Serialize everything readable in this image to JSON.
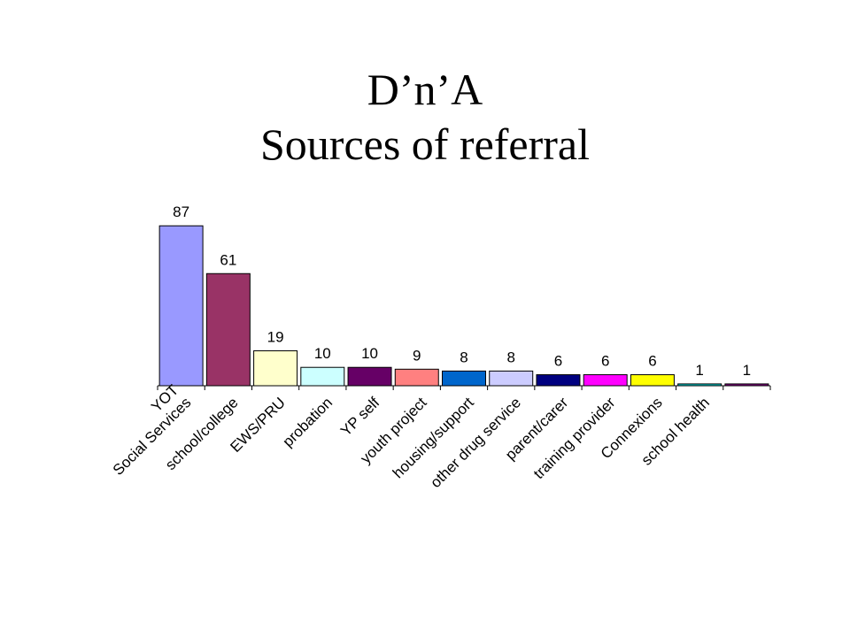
{
  "chart_data": {
    "type": "bar",
    "title": [
      "D’n’A",
      "Sources of referral"
    ],
    "categories": [
      "YOT\nSocial Services",
      "school/college",
      "EWS/PRU",
      "probation",
      "YP self",
      "youth project",
      "housing/support",
      "other drug service",
      "parent/carer",
      "training provider",
      "Connexions",
      "school health",
      ""
    ],
    "values": [
      87,
      61,
      19,
      10,
      10,
      9,
      8,
      8,
      6,
      6,
      6,
      1,
      1
    ],
    "colors": [
      "#9999ff",
      "#993366",
      "#ffffcc",
      "#ccffff",
      "#660066",
      "#ff8080",
      "#0066cc",
      "#ccccff",
      "#000080",
      "#ff00ff",
      "#ffff00",
      "#00cccc",
      "#800080"
    ],
    "ylim": [
      0,
      90
    ]
  }
}
